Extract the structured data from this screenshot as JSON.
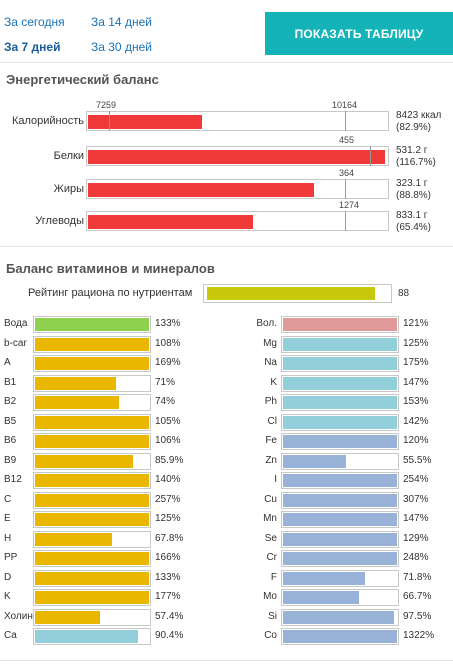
{
  "periods": [
    {
      "label": "За сегодня",
      "active": false
    },
    {
      "label": "За 14 дней",
      "active": false
    },
    {
      "label": "За 7 дней",
      "active": true
    },
    {
      "label": "За 30 дней",
      "active": false
    }
  ],
  "show_table_label": "ПОКАЗАТЬ ТАБЛИЦУ",
  "energy": {
    "title": "Энергетический баланс",
    "rows": [
      {
        "label": "Калорийность",
        "fill_percent": 38.2,
        "markers": [
          "7259",
          "10164"
        ],
        "value": "8423 ккал",
        "pct": "(82.9%)"
      },
      {
        "label": "Белки",
        "fill_percent": 99.3,
        "markers": [
          "455"
        ],
        "value": "531.2 г",
        "pct": "(116.7%)"
      },
      {
        "label": "Жиры",
        "fill_percent": 75.7,
        "markers": [
          "364"
        ],
        "value": "323.1 г",
        "pct": "(88.8%)"
      },
      {
        "label": "Углеводы",
        "fill_percent": 55.3,
        "markers": [
          "1274"
        ],
        "value": "833.1 г",
        "pct": "(65.4%)"
      }
    ]
  },
  "vitamins": {
    "title": "Баланс витаминов и минералов",
    "rating_label": "Рейтинг рациона по нутриентам",
    "rating_value": "88",
    "rating_percent": 88,
    "colors": {
      "green": "#8fd14f",
      "yellow": "#e9b600",
      "cyan": "#93cfdb",
      "pink": "#e09a9a",
      "blue": "#98b2d8",
      "olive": "#c8c80c",
      "red": "#f03a3a",
      "accent": "#14b3b8"
    },
    "left": [
      {
        "label": "Вода",
        "value": "133%",
        "fill": 100,
        "color": "green"
      },
      {
        "label": "b-car",
        "value": "108%",
        "fill": 100,
        "color": "yellow"
      },
      {
        "label": "A",
        "value": "169%",
        "fill": 100,
        "color": "yellow"
      },
      {
        "label": "B1",
        "value": "71%",
        "fill": 71,
        "color": "yellow"
      },
      {
        "label": "B2",
        "value": "74%",
        "fill": 74,
        "color": "yellow"
      },
      {
        "label": "B5",
        "value": "105%",
        "fill": 100,
        "color": "yellow"
      },
      {
        "label": "B6",
        "value": "106%",
        "fill": 100,
        "color": "yellow"
      },
      {
        "label": "B9",
        "value": "85.9%",
        "fill": 85.9,
        "color": "yellow"
      },
      {
        "label": "B12",
        "value": "140%",
        "fill": 100,
        "color": "yellow"
      },
      {
        "label": "C",
        "value": "257%",
        "fill": 100,
        "color": "yellow"
      },
      {
        "label": "E",
        "value": "125%",
        "fill": 100,
        "color": "yellow"
      },
      {
        "label": "H",
        "value": "67.8%",
        "fill": 67.8,
        "color": "yellow"
      },
      {
        "label": "PP",
        "value": "166%",
        "fill": 100,
        "color": "yellow"
      },
      {
        "label": "D",
        "value": "133%",
        "fill": 100,
        "color": "yellow"
      },
      {
        "label": "K",
        "value": "177%",
        "fill": 100,
        "color": "yellow"
      },
      {
        "label": "Холин",
        "value": "57.4%",
        "fill": 57.4,
        "color": "yellow"
      },
      {
        "label": "Ca",
        "value": "90.4%",
        "fill": 90.4,
        "color": "cyan"
      }
    ],
    "right": [
      {
        "label": "Вол.",
        "value": "121%",
        "fill": 100,
        "color": "pink"
      },
      {
        "label": "Mg",
        "value": "125%",
        "fill": 100,
        "color": "cyan"
      },
      {
        "label": "Na",
        "value": "175%",
        "fill": 100,
        "color": "cyan"
      },
      {
        "label": "K",
        "value": "147%",
        "fill": 100,
        "color": "cyan"
      },
      {
        "label": "Ph",
        "value": "153%",
        "fill": 100,
        "color": "cyan"
      },
      {
        "label": "Cl",
        "value": "142%",
        "fill": 100,
        "color": "cyan"
      },
      {
        "label": "Fe",
        "value": "120%",
        "fill": 100,
        "color": "blue"
      },
      {
        "label": "Zn",
        "value": "55.5%",
        "fill": 55.5,
        "color": "blue"
      },
      {
        "label": "I",
        "value": "254%",
        "fill": 100,
        "color": "blue"
      },
      {
        "label": "Cu",
        "value": "307%",
        "fill": 100,
        "color": "blue"
      },
      {
        "label": "Mn",
        "value": "147%",
        "fill": 100,
        "color": "blue"
      },
      {
        "label": "Se",
        "value": "129%",
        "fill": 100,
        "color": "blue"
      },
      {
        "label": "Cr",
        "value": "248%",
        "fill": 100,
        "color": "blue"
      },
      {
        "label": "F",
        "value": "71.8%",
        "fill": 71.8,
        "color": "blue"
      },
      {
        "label": "Mo",
        "value": "66.7%",
        "fill": 66.7,
        "color": "blue"
      },
      {
        "label": "Si",
        "value": "97.5%",
        "fill": 97.5,
        "color": "blue"
      },
      {
        "label": "Co",
        "value": "1322%",
        "fill": 100,
        "color": "blue"
      }
    ]
  }
}
